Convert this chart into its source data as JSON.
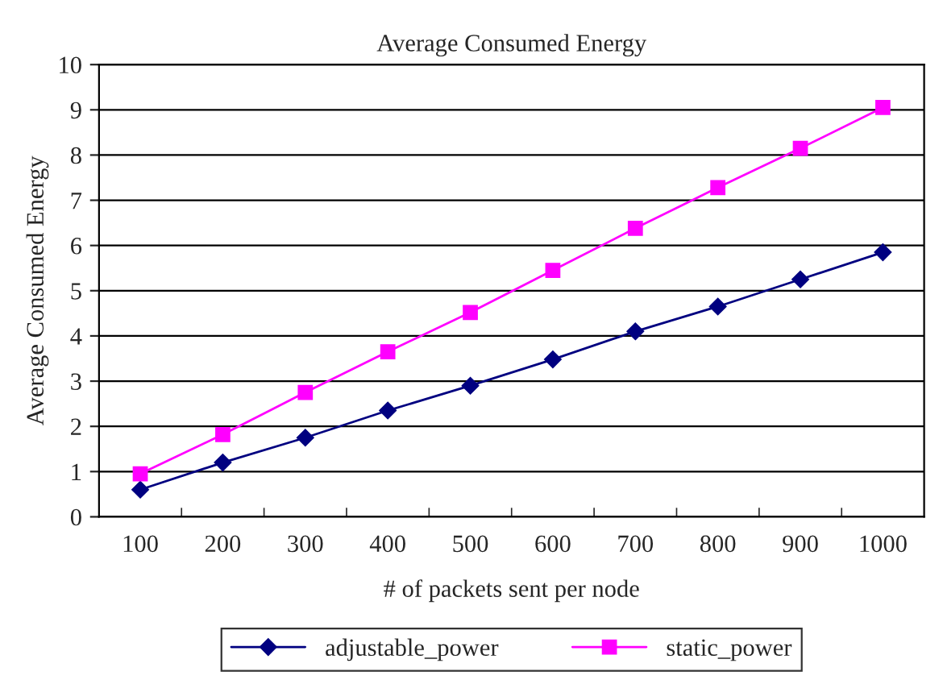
{
  "chart_data": {
    "type": "line",
    "title": "Average Consumed Energy",
    "xlabel": "# of packets sent per node",
    "ylabel": "Average Consumed Energy",
    "categories": [
      "100",
      "200",
      "300",
      "400",
      "500",
      "600",
      "700",
      "800",
      "900",
      "1000"
    ],
    "series": [
      {
        "name": "adjustable_power",
        "color": "#000080",
        "marker": "diamond",
        "values": [
          0.6,
          1.2,
          1.75,
          2.35,
          2.9,
          3.48,
          4.1,
          4.65,
          5.25,
          5.85
        ]
      },
      {
        "name": "static_power",
        "color": "#ff00ff",
        "marker": "square",
        "values": [
          0.95,
          1.82,
          2.75,
          3.65,
          4.52,
          5.45,
          6.38,
          7.28,
          8.15,
          9.05
        ]
      }
    ],
    "ylim": [
      0,
      10
    ],
    "yticks": [
      0,
      1,
      2,
      3,
      4,
      5,
      6,
      7,
      8,
      9,
      10
    ],
    "grid": "y",
    "legend": "bottom",
    "line_style": "solid"
  }
}
